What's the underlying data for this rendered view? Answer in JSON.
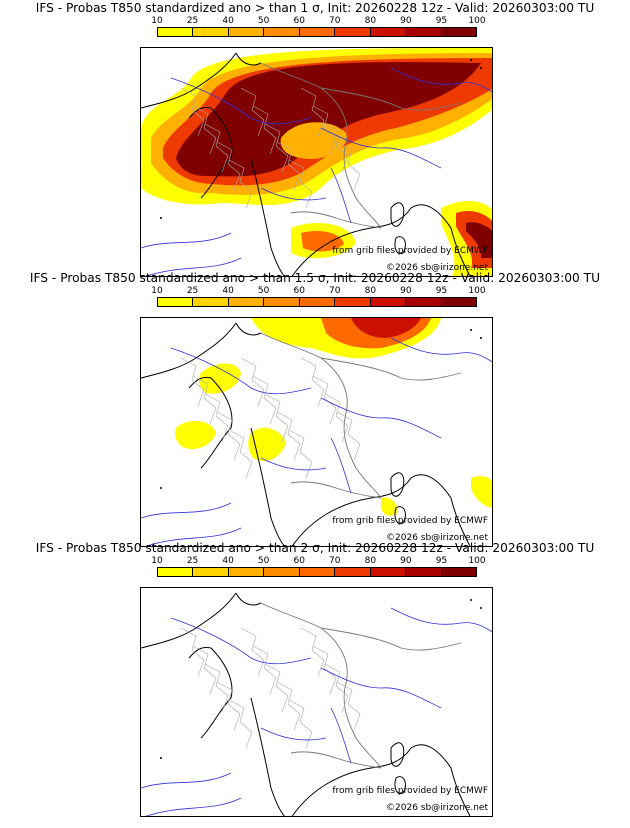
{
  "panels": [
    {
      "title": "IFS - Probas T850  standardized ano > than 1 σ, Init: 20260228 12z - Valid: 20260303:00 TU",
      "credit_source": "from grib files provided by ECMWF",
      "credit_copyright": "©2026 sb@irizone.net",
      "coverage": "high"
    },
    {
      "title": "IFS - Probas T850  standardized ano > than 1.5 σ, Init: 20260228 12z - Valid: 20260303:00 TU",
      "credit_source": "from grib files provided by ECMWF",
      "credit_copyright": "©2026 sb@irizone.net",
      "coverage": "medium"
    },
    {
      "title": "IFS - Probas T850  standardized ano > than 2 σ, Init: 20260228 12z - Valid: 20260303:00 TU",
      "credit_source": "from grib files provided by ECMWF",
      "credit_copyright": "©2026 sb@irizone.net",
      "coverage": "none"
    }
  ],
  "scale": {
    "ticks": [
      "10",
      "25",
      "40",
      "50",
      "60",
      "70",
      "80",
      "90",
      "95",
      "100"
    ],
    "colors": [
      "#ffff00",
      "#ffd400",
      "#ffb000",
      "#ff8c00",
      "#ff6a00",
      "#ee3a00",
      "#cc1000",
      "#a80000",
      "#800000"
    ]
  },
  "map_colors": {
    "coast": "#000000",
    "rivers": "#3030dd",
    "borders": "#777777",
    "regions": "#aaaaaa"
  }
}
